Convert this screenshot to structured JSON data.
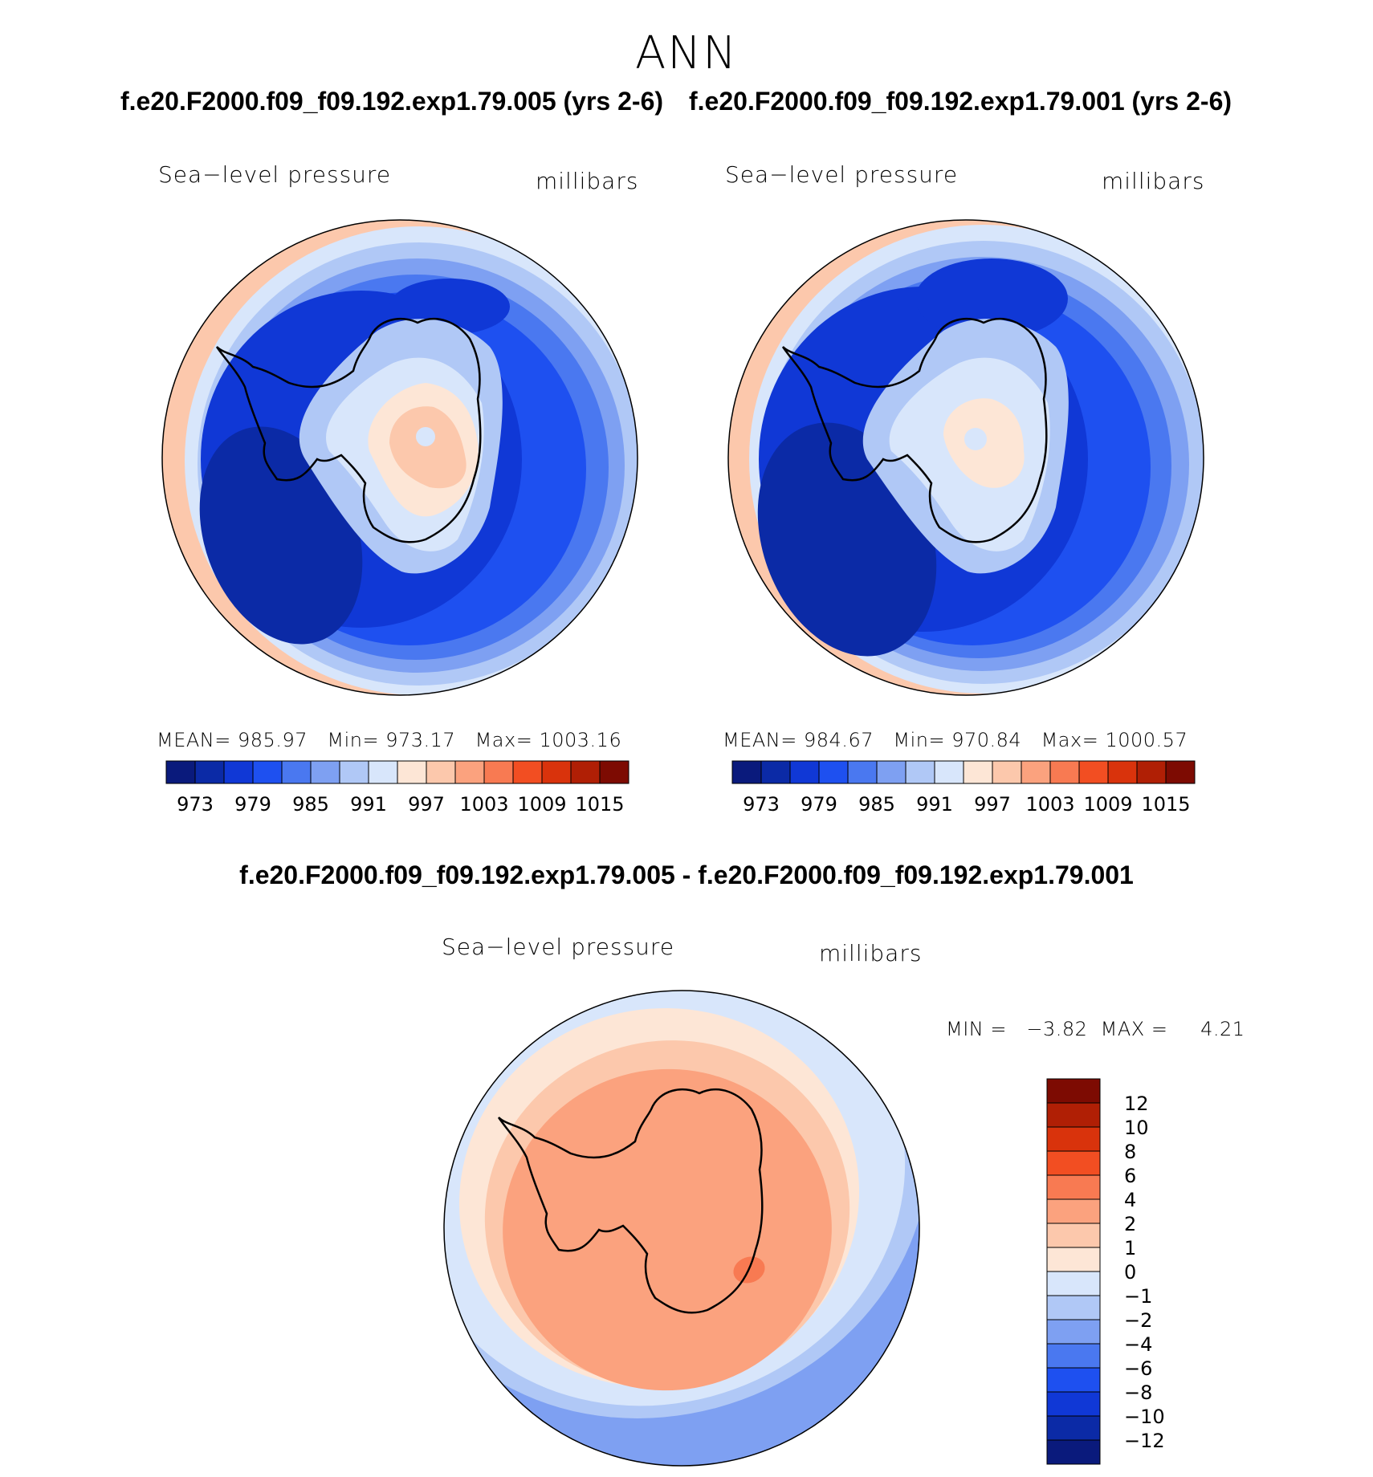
{
  "figure": {
    "title": "ANN",
    "case_titles": [
      "f.e20.F2000.f09_f09.192.exp1.79.005 (yrs 2-6)",
      "f.e20.F2000.f09_f09.192.exp1.79.001 (yrs 2-6)"
    ],
    "diff_title": "f.e20.F2000.f09_f09.192.exp1.79.005 - f.e20.F2000.f09_f09.192.exp1.79.001"
  },
  "panels": [
    {
      "variable": "Sea−level pressure",
      "units": "millibars",
      "mean_label": "MEAN=",
      "mean": "985.97",
      "min_label": "Min=",
      "min": "973.17",
      "max_label": "Max=",
      "max": "1003.16"
    },
    {
      "variable": "Sea−level pressure",
      "units": "millibars",
      "mean_label": "MEAN=",
      "mean": "984.67",
      "min_label": "Min=",
      "min": "970.84",
      "max_label": "Max=",
      "max": "1000.57"
    },
    {
      "variable": "Sea−level pressure",
      "units": "millibars",
      "minmax_text": "MIN =   −3.82  MAX =     4.21"
    }
  ],
  "abs_colorbar": {
    "ticks": [
      "973",
      "979",
      "985",
      "991",
      "997",
      "1003",
      "1009",
      "1015"
    ],
    "colors": [
      "#0a1a7c",
      "#0b2aa6",
      "#1038d6",
      "#1e50f0",
      "#4a78f0",
      "#7ea0f2",
      "#b0c8f6",
      "#d8e6fb",
      "#fde6d6",
      "#fcc8ac",
      "#fba27e",
      "#f87a52",
      "#f24e22",
      "#d9330c",
      "#b01f05",
      "#7d0b02"
    ]
  },
  "diff_colorbar": {
    "ticks": [
      "12",
      "10",
      "8",
      "6",
      "4",
      "2",
      "1",
      "0",
      "−1",
      "−2",
      "−4",
      "−6",
      "−8",
      "−10",
      "−12"
    ],
    "colors": [
      "#7d0b02",
      "#b01f05",
      "#d9330c",
      "#f24e22",
      "#f87a52",
      "#fba27e",
      "#fcc8ac",
      "#fde6d6",
      "#d8e6fb",
      "#b0c8f6",
      "#7ea0f2",
      "#4a78f0",
      "#1e50f0",
      "#1038d6",
      "#0b2aa6",
      "#0a1a7c"
    ]
  },
  "map_colors": {
    "ring0": "#fcc8ac",
    "ring1": "#d8e6fb",
    "ring2": "#b0c8f6",
    "ring3": "#7ea0f2",
    "ring4": "#4a78f0",
    "ring5": "#1e50f0",
    "low": "#1038d6",
    "deep": "#0b2aa6",
    "land_outer": "#b0c8f6",
    "land_mid": "#d8e6fb",
    "land_inner": "#fde6d6",
    "land_core": "#fcc8ac",
    "diff_outer": "#7ea0f2",
    "diff_mid": "#b0c8f6",
    "diff_light": "#d8e6fb",
    "diff_pos1": "#fde6d6",
    "diff_pos2": "#fcc8ac",
    "diff_pos3": "#fba27e",
    "diff_pos4": "#f87a52",
    "outline": "#000000"
  }
}
